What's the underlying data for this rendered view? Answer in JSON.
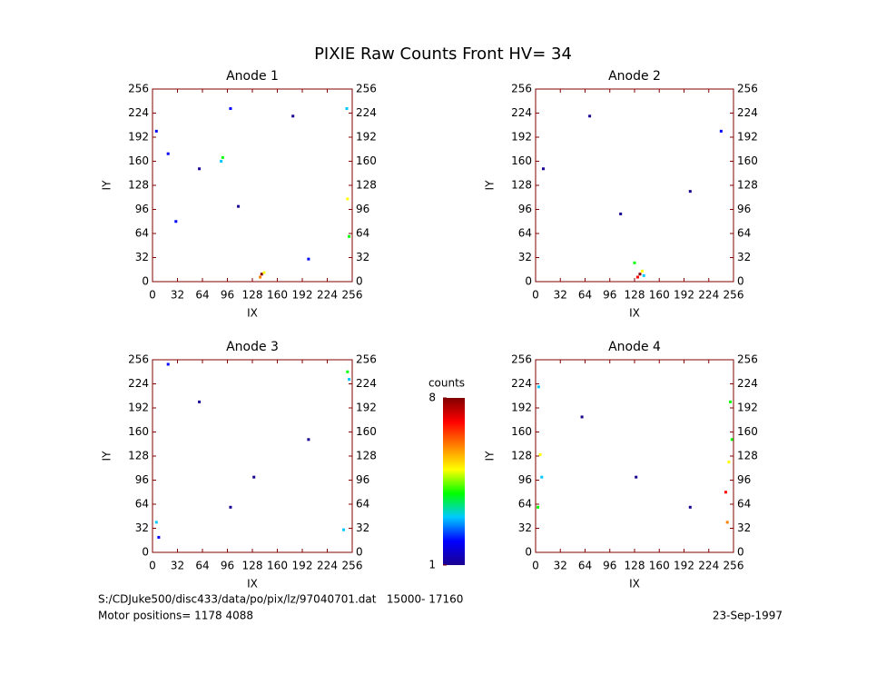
{
  "title": "PIXIE Raw Counts Front HV= 34",
  "chart_data": [
    {
      "type": "scatter",
      "title": "Anode 1",
      "xlabel": "IX",
      "ylabel": "IY",
      "xlim": [
        0,
        256
      ],
      "ylim": [
        0,
        256
      ],
      "xticks": [
        0,
        32,
        64,
        96,
        128,
        160,
        192,
        224,
        256
      ],
      "yticks": [
        0,
        32,
        64,
        96,
        128,
        160,
        192,
        224,
        256
      ],
      "x": [
        140,
        138,
        143,
        90,
        88,
        250,
        252,
        249,
        100,
        20,
        30,
        200,
        180,
        60,
        110,
        5
      ],
      "y": [
        10,
        6,
        12,
        165,
        160,
        110,
        60,
        230,
        230,
        170,
        80,
        30,
        220,
        150,
        100,
        200
      ],
      "counts": [
        8,
        6,
        5,
        4,
        3,
        5,
        4,
        3,
        2,
        2,
        2,
        2,
        1,
        1,
        1,
        2
      ]
    },
    {
      "type": "scatter",
      "title": "Anode 2",
      "xlabel": "IX",
      "ylabel": "IY",
      "xlim": [
        0,
        256
      ],
      "ylim": [
        0,
        256
      ],
      "xticks": [
        0,
        32,
        64,
        96,
        128,
        160,
        192,
        224,
        256
      ],
      "yticks": [
        0,
        32,
        64,
        96,
        128,
        160,
        192,
        224,
        256
      ],
      "x": [
        135,
        132,
        138,
        128,
        140,
        240,
        10,
        110,
        70,
        200
      ],
      "y": [
        10,
        6,
        14,
        25,
        8,
        200,
        150,
        90,
        220,
        120
      ],
      "counts": [
        8,
        7,
        5,
        4,
        3,
        2,
        1,
        1,
        1,
        1
      ]
    },
    {
      "type": "scatter",
      "title": "Anode 3",
      "xlabel": "IX",
      "ylabel": "IY",
      "xlim": [
        0,
        256
      ],
      "ylim": [
        0,
        256
      ],
      "xticks": [
        0,
        32,
        64,
        96,
        128,
        160,
        192,
        224,
        256
      ],
      "yticks": [
        0,
        32,
        64,
        96,
        128,
        160,
        192,
        224,
        256
      ],
      "x": [
        250,
        252,
        5,
        8,
        130,
        60,
        200,
        100,
        245,
        20
      ],
      "y": [
        240,
        230,
        40,
        20,
        100,
        200,
        150,
        60,
        30,
        250
      ],
      "counts": [
        4,
        3,
        3,
        2,
        1,
        1,
        1,
        1,
        3,
        2
      ]
    },
    {
      "type": "scatter",
      "title": "Anode 4",
      "xlabel": "IX",
      "ylabel": "IY",
      "xlim": [
        0,
        256
      ],
      "ylim": [
        0,
        256
      ],
      "xticks": [
        0,
        32,
        64,
        96,
        128,
        160,
        192,
        224,
        256
      ],
      "yticks": [
        0,
        32,
        64,
        96,
        128,
        160,
        192,
        224,
        256
      ],
      "x": [
        3,
        6,
        250,
        252,
        248,
        4,
        254,
        130,
        60,
        200,
        8,
        246
      ],
      "y": [
        60,
        130,
        120,
        200,
        40,
        220,
        150,
        100,
        180,
        60,
        100,
        80
      ],
      "counts": [
        4,
        5,
        5,
        4,
        6,
        3,
        4,
        1,
        1,
        1,
        3,
        7
      ]
    }
  ],
  "colorbar": {
    "label": "counts",
    "lim": [
      1,
      8
    ],
    "ticks": [
      1,
      8
    ],
    "colormap": [
      "#1c0090",
      "#0000ff",
      "#00c8ff",
      "#00ff00",
      "#ffff00",
      "#ff8000",
      "#ff0000",
      "#800000"
    ]
  },
  "footer": {
    "file": "S:/CDJuke500/disc433/data/po/pix/lz/97040701.dat   15000- 17160",
    "motor": "Motor positions= 1178 4088",
    "date": "23-Sep-1997"
  }
}
